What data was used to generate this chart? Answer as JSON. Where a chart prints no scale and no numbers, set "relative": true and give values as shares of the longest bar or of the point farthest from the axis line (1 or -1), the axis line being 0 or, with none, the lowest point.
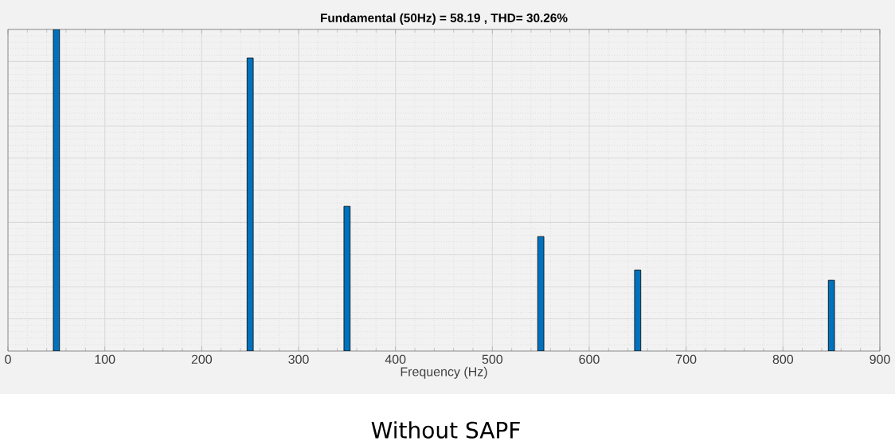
{
  "chart_data": {
    "type": "bar",
    "title": "Fundamental (50Hz) = 58.19 , THD= 30.26%",
    "xlabel": "Frequency (Hz)",
    "x": [
      50,
      250,
      350,
      550,
      650,
      850
    ],
    "values": [
      1,
      0.911,
      0.45,
      0.356,
      0.252,
      0.22
    ],
    "relative": true,
    "color": "#0072bd",
    "xlim": [
      0,
      900
    ],
    "xticks": [
      0,
      100,
      200,
      300,
      400,
      500,
      600,
      700,
      800,
      900
    ],
    "grid": true,
    "annotations": [
      "Without SAPF"
    ]
  }
}
